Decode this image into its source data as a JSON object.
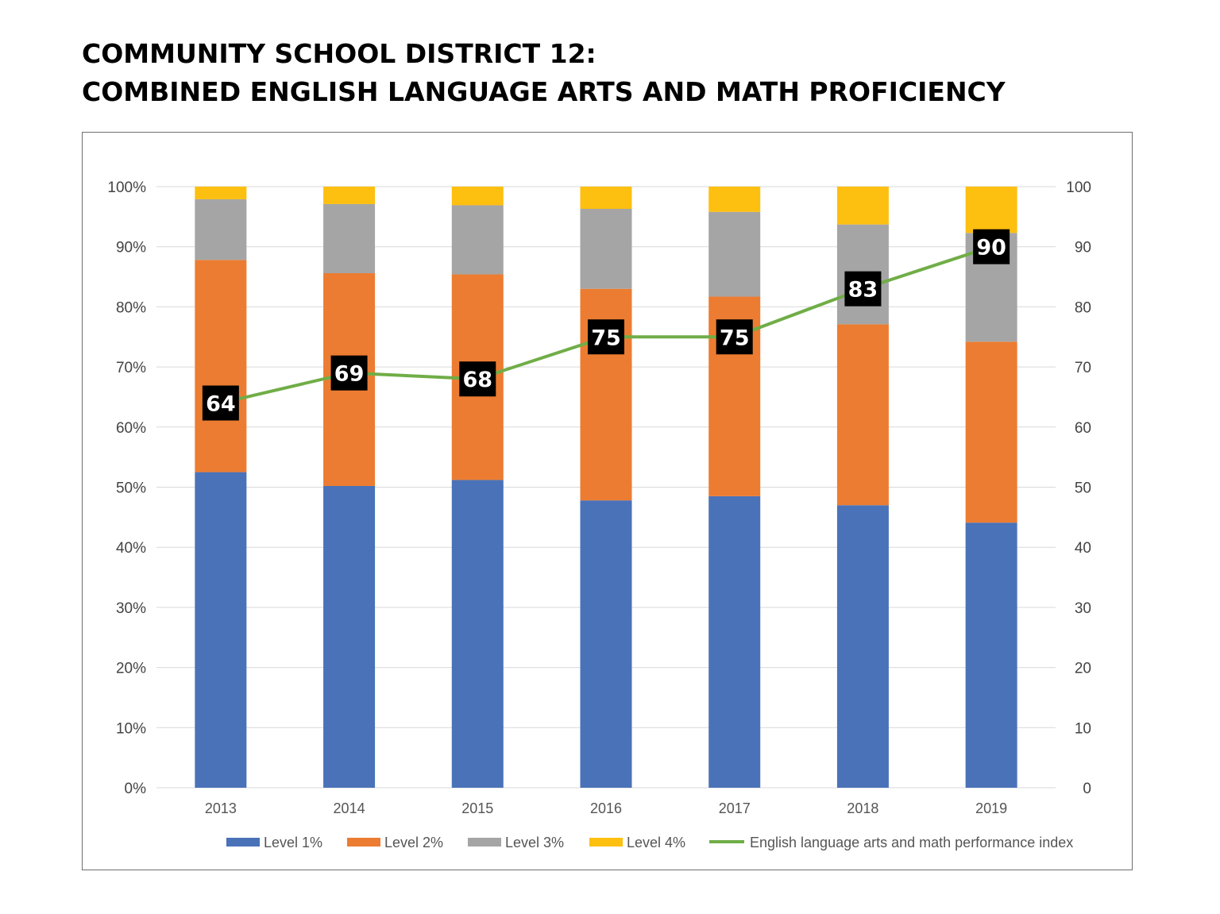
{
  "title_lines": [
    "COMMUNITY SCHOOL DISTRICT 12:",
    "COMBINED ENGLISH LANGUAGE ARTS AND MATH PROFICIENCY"
  ],
  "colors": {
    "level1": "#4a72b8",
    "level2": "#ec7c31",
    "level3": "#a5a5a5",
    "level4": "#fdbf10",
    "index_line": "#70ad47",
    "label_box": "#000000",
    "gridline": "#d9d9d9"
  },
  "chart_data": {
    "type": "bar",
    "stacked": true,
    "categories": [
      "2013",
      "2014",
      "2015",
      "2016",
      "2017",
      "2018",
      "2019"
    ],
    "series": [
      {
        "name": "Level 1%",
        "values": [
          52.5,
          50.2,
          51.2,
          47.8,
          48.5,
          47.0,
          44.1
        ]
      },
      {
        "name": "Level 2%",
        "values": [
          35.3,
          35.4,
          34.2,
          35.2,
          33.2,
          30.1,
          30.1
        ]
      },
      {
        "name": "Level 3%",
        "values": [
          10.1,
          11.5,
          11.5,
          13.3,
          14.1,
          16.6,
          18.1
        ]
      },
      {
        "name": "Level 4%",
        "values": [
          2.1,
          2.9,
          3.1,
          3.7,
          4.2,
          6.3,
          7.7
        ]
      }
    ],
    "line_series": {
      "name": "English language arts and math performance  index",
      "values": [
        64,
        69,
        68,
        75,
        75,
        83,
        90
      ],
      "labels": [
        "64",
        "69",
        "68",
        "75",
        "75",
        "83",
        "90"
      ],
      "axis": "secondary"
    },
    "y_left": {
      "min": 0,
      "max": 100,
      "tick_labels": [
        "0%",
        "10%",
        "20%",
        "30%",
        "40%",
        "50%",
        "60%",
        "70%",
        "80%",
        "90%",
        "100%"
      ]
    },
    "y_right": {
      "min": 0,
      "max": 100,
      "tick_labels": [
        "0",
        "10",
        "20",
        "30",
        "40",
        "50",
        "60",
        "70",
        "80",
        "90",
        "100"
      ]
    },
    "grid": true,
    "legend_placement": "bottom"
  }
}
